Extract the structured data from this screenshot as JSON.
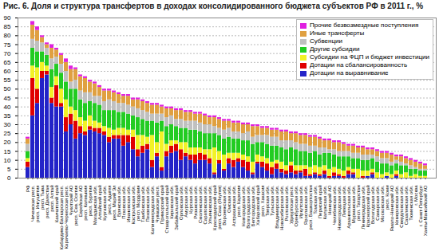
{
  "chart_data": {
    "type": "bar",
    "title": "Рис. 6. Доля и структура трансфертов в доходах консолидированного бюджета субъектов РФ в 2011 г., %",
    "stacked": true,
    "grid": true,
    "legend": "top-right",
    "ylim": [
      0,
      90
    ],
    "yticks": [
      0,
      5,
      10,
      15,
      20,
      25,
      30,
      35,
      40,
      45,
      50,
      55,
      60,
      65,
      70,
      75,
      80,
      85,
      90
    ],
    "categories": [
      "РФ",
      "Чеченская респ.",
      "респ. Ингушетия",
      "респ. Тыва",
      "респ. Дагестан",
      "респ. Алтай",
      "Камчатский край",
      "Кабардино-Балкарская респ.",
      "Карачаево-Черкесская респ.",
      "Чукотский АО",
      "респ. Сев. Осетия",
      "Еврейская АО",
      "респ. Калмыкия",
      "респ. Бурятия",
      "Магаданская обл.",
      "Алтайский край",
      "Курганская обл.",
      "респ. Адыгея",
      "респ. Марий Эл",
      "Брянская обл.",
      "Псковская обл.",
      "Ивановская обл.",
      "Костромская обл.",
      "респ. Мордовия",
      "Тамбовская обл.",
      "Пензенская обл.",
      "Калининградская обл.",
      "Чувашская респ.",
      "Приморский край",
      "Ставропольский край",
      "Кировская обл.",
      "Забайкальский край",
      "Орловская обл.",
      "Амурская обл.",
      "Курская обл.",
      "Рязанская обл.",
      "Смоленская обл.",
      "Саратовская обл.",
      "Ульяновская обл.",
      "Краснодарский край",
      "респ. Саха (Якутия)",
      "Воронежская обл.",
      "Омская обл.",
      "Астраханская обл.",
      "респ. Карелия",
      "Новгородская обл.",
      "Волгоградская обл.",
      "Белгородская обл.",
      "Хабаровский край",
      "респ. Хакасия",
      "Тверская обл.",
      "Тульская обл.",
      "Владимирская обл.",
      "Новосибирская обл.",
      "Ростовская обл.",
      "Удмуртская респ.",
      "Оренбургская обл.",
      "Иркутская обл.",
      "Ярославская обл.",
      "респ. Башкортостан",
      "Томская обл.",
      "Пермский край",
      "Калужская обл.",
      "Ненецкий АО",
      "Челябинская обл.",
      "Нижегородская обл.",
      "Липецкая обл.",
      "Архангельская обл.",
      "Мурманская обл.",
      "респ. Татарстан",
      "Ленинградская обл.",
      "Красноярский край",
      "Вологодская обл.",
      "Самарская обл.",
      "Московская обл.",
      "респ. Коми",
      "Ямало-Ненецкий АО",
      "Кемеровская обл.",
      "Свердловская обл.",
      "Сахалинская обл.",
      "Тюменская обл.",
      "г. Москва",
      "г. Санкт-Петербург",
      "Ханты-Мансийский АО"
    ],
    "series": [
      {
        "name": "Дотации на выравнивание",
        "color": "#2323c8",
        "values": [
          6,
          35,
          42,
          56,
          58,
          42,
          40,
          40,
          26,
          30,
          22,
          25,
          24,
          27,
          26,
          25,
          24,
          20,
          22,
          22,
          18,
          20,
          16,
          12,
          14,
          16,
          6,
          12,
          4,
          12,
          14,
          15,
          10,
          12,
          10,
          8,
          10,
          10,
          8,
          2,
          8,
          4,
          8,
          6,
          9,
          6,
          4,
          2,
          8,
          6,
          4,
          2,
          5,
          3,
          2,
          3,
          2,
          3,
          1,
          1,
          2,
          1,
          2,
          0,
          1,
          1,
          0,
          2,
          2,
          0,
          0,
          1,
          2,
          0,
          0,
          1,
          0,
          1,
          0,
          0,
          0,
          0,
          0,
          0
        ]
      },
      {
        "name": "Дотации на сбалансированность",
        "color": "#e00000",
        "values": [
          3,
          21,
          8,
          4,
          2,
          3,
          12,
          2,
          8,
          6,
          10,
          4,
          2,
          2,
          2,
          3,
          2,
          3,
          2,
          2,
          6,
          4,
          7,
          4,
          4,
          3,
          4,
          2,
          2,
          3,
          4,
          4,
          6,
          2,
          3,
          5,
          4,
          3,
          3,
          1,
          2,
          1,
          3,
          4,
          2,
          4,
          5,
          1,
          1,
          3,
          4,
          4,
          3,
          2,
          2,
          4,
          2,
          1,
          4,
          1,
          1,
          1,
          2,
          1,
          2,
          1,
          1,
          2,
          1,
          0,
          1,
          0,
          1,
          0,
          0,
          0,
          0,
          1,
          0,
          0,
          0,
          0,
          0,
          0
        ]
      },
      {
        "name": "Субсидии на ФЦП и бюджет инвестиции",
        "color": "#f2f226",
        "values": [
          2,
          7,
          12,
          5,
          3,
          6,
          5,
          8,
          10,
          4,
          6,
          5,
          6,
          6,
          4,
          3,
          3,
          5,
          3,
          4,
          4,
          3,
          4,
          8,
          6,
          4,
          14,
          6,
          20,
          4,
          3,
          2,
          4,
          6,
          4,
          4,
          3,
          3,
          5,
          14,
          5,
          8,
          3,
          4,
          3,
          3,
          3,
          6,
          4,
          3,
          3,
          3,
          2,
          4,
          3,
          2,
          3,
          3,
          2,
          4,
          4,
          4,
          3,
          4,
          3,
          3,
          3,
          2,
          2,
          5,
          3,
          3,
          2,
          3,
          2,
          2,
          2,
          2,
          2,
          3,
          1,
          2,
          1,
          1
        ]
      },
      {
        "name": "Другие субсидии",
        "color": "#22cc22",
        "values": [
          4,
          10,
          9,
          6,
          6,
          10,
          7,
          9,
          10,
          10,
          12,
          10,
          10,
          8,
          10,
          10,
          9,
          10,
          11,
          9,
          9,
          9,
          8,
          10,
          9,
          9,
          8,
          11,
          6,
          10,
          9,
          8,
          8,
          8,
          10,
          10,
          9,
          9,
          9,
          8,
          9,
          9,
          9,
          8,
          8,
          8,
          9,
          10,
          7,
          8,
          8,
          9,
          8,
          8,
          9,
          8,
          9,
          8,
          8,
          8,
          8,
          7,
          7,
          9,
          7,
          7,
          8,
          6,
          6,
          6,
          6,
          6,
          6,
          6,
          6,
          5,
          5,
          4,
          5,
          4,
          4,
          3,
          3,
          3
        ]
      },
      {
        "name": "Субвенции",
        "color": "#c0c0c0",
        "values": [
          4,
          5,
          6,
          5,
          4,
          6,
          4,
          5,
          6,
          4,
          5,
          5,
          6,
          5,
          4,
          5,
          5,
          6,
          5,
          5,
          5,
          5,
          5,
          5,
          5,
          5,
          4,
          5,
          4,
          5,
          5,
          4,
          5,
          4,
          5,
          5,
          5,
          5,
          5,
          4,
          4,
          5,
          5,
          4,
          4,
          4,
          5,
          4,
          4,
          4,
          5,
          5,
          5,
          4,
          5,
          4,
          4,
          4,
          4,
          4,
          3,
          4,
          3,
          2,
          3,
          3,
          3,
          3,
          3,
          3,
          3,
          3,
          2,
          3,
          3,
          3,
          2,
          2,
          2,
          1,
          2,
          1,
          1,
          1
        ]
      },
      {
        "name": "Иные трансферты",
        "color": "#e0a040",
        "values": [
          3,
          8,
          6,
          3,
          2,
          6,
          4,
          5,
          5,
          7,
          6,
          8,
          8,
          6,
          7,
          5,
          6,
          5,
          5,
          5,
          4,
          5,
          4,
          5,
          5,
          5,
          5,
          5,
          4,
          5,
          4,
          5,
          5,
          5,
          5,
          4,
          5,
          5,
          4,
          5,
          5,
          5,
          4,
          5,
          5,
          5,
          4,
          6,
          5,
          4,
          4,
          4,
          4,
          5,
          5,
          4,
          5,
          5,
          5,
          5,
          5,
          5,
          4,
          5,
          4,
          5,
          4,
          3,
          4,
          3,
          4,
          3,
          3,
          3,
          3,
          3,
          4,
          2,
          3,
          3,
          3,
          3,
          3,
          2
        ]
      },
      {
        "name": "Прочие безвозмездные поступления",
        "color": "#e020e0",
        "values": [
          1,
          2,
          2,
          1,
          1,
          2,
          1,
          1,
          2,
          2,
          1,
          1,
          1,
          1,
          1,
          1,
          1,
          1,
          1,
          1,
          1,
          1,
          1,
          1,
          1,
          1,
          1,
          1,
          1,
          1,
          1,
          1,
          1,
          1,
          1,
          1,
          1,
          1,
          1,
          1,
          1,
          1,
          1,
          1,
          1,
          1,
          1,
          1,
          1,
          1,
          1,
          1,
          1,
          1,
          1,
          1,
          1,
          1,
          1,
          1,
          1,
          1,
          1,
          1,
          1,
          1,
          1,
          1,
          1,
          1,
          1,
          1,
          1,
          1,
          1,
          1,
          1,
          1,
          1,
          1,
          1,
          1,
          1,
          1
        ]
      }
    ]
  }
}
